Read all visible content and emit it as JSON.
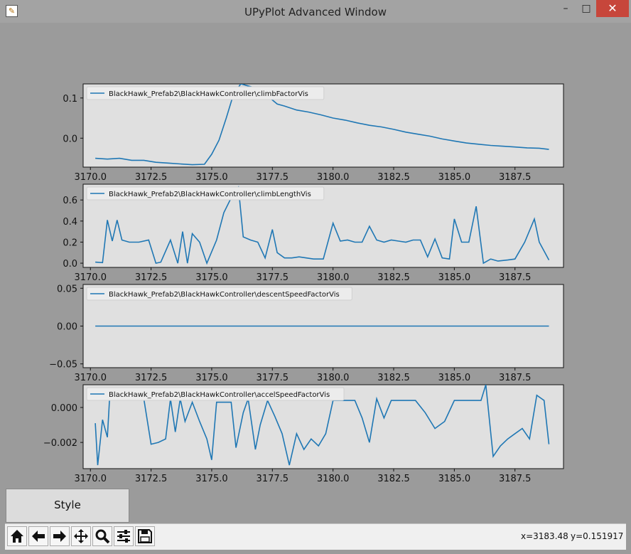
{
  "window": {
    "title": "UPyPlot Advanced Window",
    "minimize": "–",
    "maximize": "□",
    "close": "✕"
  },
  "style_button": {
    "label": "Style"
  },
  "toolbar": {
    "buttons": [
      "home-icon",
      "back-icon",
      "forward-icon",
      "pan-icon",
      "zoom-icon",
      "configure-subplots-icon",
      "save-icon"
    ],
    "coord_x": "x=3183.48",
    "coord_y": "y=0.151917"
  },
  "colors": {
    "series": "#1f77b4",
    "axes_bg": "#e0e0e0",
    "figure_bg": "#9b9b9b"
  },
  "chart_data": [
    {
      "type": "line",
      "legend": "BlackHawk_Prefab2\\BlackHawkController\\climbFactorVis",
      "legend_position": "top-left",
      "xlim": [
        3169.7,
        3189.5
      ],
      "ylim": [
        -0.072,
        0.135
      ],
      "xticks": [
        3170.0,
        3172.5,
        3175.0,
        3177.5,
        3180.0,
        3182.5,
        3185.0,
        3187.5
      ],
      "xticklabels": [
        "3170.0",
        "3172.5",
        "3175.0",
        "3177.5",
        "3180.0",
        "3182.5",
        "3185.0",
        "3187.5"
      ],
      "yticks": [
        0.1,
        0.0
      ],
      "yticklabels": [
        "0.1",
        "0.0"
      ],
      "x": [
        3170.2,
        3170.7,
        3171.2,
        3171.7,
        3172.2,
        3172.7,
        3173.2,
        3173.7,
        3174.2,
        3174.7,
        3175.0,
        3175.3,
        3175.6,
        3175.9,
        3176.2,
        3176.5,
        3176.8,
        3177.1,
        3177.4,
        3177.7,
        3178.0,
        3178.5,
        3179.0,
        3179.5,
        3180.0,
        3180.5,
        3181.0,
        3181.5,
        3182.0,
        3182.5,
        3183.0,
        3183.5,
        3184.0,
        3184.5,
        3185.0,
        3185.5,
        3186.0,
        3186.5,
        3187.0,
        3187.5,
        3188.0,
        3188.5,
        3188.9
      ],
      "y": [
        -0.05,
        -0.052,
        -0.05,
        -0.055,
        -0.055,
        -0.06,
        -0.062,
        -0.064,
        -0.066,
        -0.065,
        -0.04,
        -0.005,
        0.05,
        0.11,
        0.135,
        0.13,
        0.125,
        0.12,
        0.1,
        0.085,
        0.08,
        0.07,
        0.065,
        0.058,
        0.05,
        0.045,
        0.038,
        0.032,
        0.028,
        0.022,
        0.015,
        0.01,
        0.005,
        -0.002,
        -0.007,
        -0.012,
        -0.015,
        -0.018,
        -0.02,
        -0.022,
        -0.024,
        -0.025,
        -0.028
      ]
    },
    {
      "type": "line",
      "legend": "BlackHawk_Prefab2\\BlackHawkController\\climbLengthVis",
      "legend_position": "top-left",
      "xlim": [
        3169.7,
        3189.5
      ],
      "ylim": [
        -0.04,
        0.75
      ],
      "xticks": [
        3170.0,
        3172.5,
        3175.0,
        3177.5,
        3180.0,
        3182.5,
        3185.0,
        3187.5
      ],
      "xticklabels": [
        "3170.0",
        "3172.5",
        "3175.0",
        "3177.5",
        "3180.0",
        "3182.5",
        "3185.0",
        "3187.5"
      ],
      "yticks": [
        0.6,
        0.4,
        0.2,
        0.0
      ],
      "yticklabels": [
        "0.6",
        "0.4",
        "0.2",
        "0.0"
      ],
      "x": [
        3170.2,
        3170.5,
        3170.7,
        3170.9,
        3171.1,
        3171.3,
        3171.6,
        3172.0,
        3172.4,
        3172.7,
        3172.9,
        3173.3,
        3173.6,
        3173.8,
        3174.0,
        3174.2,
        3174.5,
        3174.8,
        3175.2,
        3175.5,
        3175.8,
        3176.1,
        3176.3,
        3176.6,
        3176.9,
        3177.2,
        3177.5,
        3177.7,
        3178.0,
        3178.3,
        3178.6,
        3178.9,
        3179.2,
        3179.6,
        3180.0,
        3180.3,
        3180.6,
        3180.9,
        3181.2,
        3181.5,
        3181.8,
        3182.1,
        3182.4,
        3182.7,
        3183.0,
        3183.3,
        3183.6,
        3183.9,
        3184.2,
        3184.5,
        3184.8,
        3185.0,
        3185.3,
        3185.6,
        3185.9,
        3186.2,
        3186.5,
        3186.8,
        3187.2,
        3187.5,
        3187.9,
        3188.3,
        3188.5,
        3188.9
      ],
      "y": [
        0.01,
        0.005,
        0.41,
        0.21,
        0.41,
        0.22,
        0.2,
        0.2,
        0.22,
        0.0,
        0.01,
        0.22,
        0.0,
        0.3,
        0.0,
        0.28,
        0.2,
        0.0,
        0.22,
        0.48,
        0.62,
        0.72,
        0.25,
        0.22,
        0.2,
        0.05,
        0.32,
        0.1,
        0.05,
        0.05,
        0.06,
        0.05,
        0.04,
        0.04,
        0.38,
        0.21,
        0.22,
        0.2,
        0.2,
        0.35,
        0.22,
        0.2,
        0.22,
        0.21,
        0.2,
        0.22,
        0.22,
        0.06,
        0.23,
        0.05,
        0.04,
        0.42,
        0.2,
        0.2,
        0.54,
        0.0,
        0.04,
        0.02,
        0.03,
        0.04,
        0.2,
        0.42,
        0.2,
        0.03
      ]
    },
    {
      "type": "line",
      "legend": "BlackHawk_Prefab2\\BlackHawkController\\descentSpeedFactorVis",
      "legend_position": "top-left",
      "xlim": [
        3169.7,
        3189.5
      ],
      "ylim": [
        -0.055,
        0.055
      ],
      "xticks": [
        3170.0,
        3172.5,
        3175.0,
        3177.5,
        3180.0,
        3182.5,
        3185.0,
        3187.5
      ],
      "xticklabels": [
        "3170.0",
        "3172.5",
        "3175.0",
        "3177.5",
        "3180.0",
        "3182.5",
        "3185.0",
        "3187.5"
      ],
      "yticks": [
        0.05,
        0.0,
        -0.05
      ],
      "yticklabels": [
        "0.05",
        "0.00",
        "−0.05"
      ],
      "x": [
        3170.2,
        3188.9
      ],
      "y": [
        0.0,
        0.0
      ]
    },
    {
      "type": "line",
      "legend": "BlackHawk_Prefab2\\BlackHawkController\\accelSpeedFactorVis",
      "legend_position": "top-left",
      "xlim": [
        3169.7,
        3189.5
      ],
      "ylim": [
        -0.0035,
        0.0013
      ],
      "xticks": [
        3170.0,
        3172.5,
        3175.0,
        3177.5,
        3180.0,
        3182.5,
        3185.0,
        3187.5
      ],
      "xticklabels": [
        "3170.0",
        "3172.5",
        "3175.0",
        "3177.5",
        "3180.0",
        "3182.5",
        "3185.0",
        "3187.5"
      ],
      "yticks": [
        0.0,
        -0.002
      ],
      "yticklabels": [
        "0.000",
        "−0.002"
      ],
      "x": [
        3170.2,
        3170.3,
        3170.5,
        3170.7,
        3170.8,
        3171.0,
        3171.3,
        3171.7,
        3172.2,
        3172.5,
        3172.8,
        3173.1,
        3173.3,
        3173.5,
        3173.7,
        3173.9,
        3174.2,
        3174.5,
        3174.8,
        3175.0,
        3175.2,
        3175.5,
        3175.8,
        3176.0,
        3176.3,
        3176.5,
        3176.8,
        3177.0,
        3177.3,
        3177.6,
        3177.9,
        3178.2,
        3178.5,
        3178.8,
        3179.1,
        3179.4,
        3179.7,
        3180.0,
        3180.3,
        3180.6,
        3180.9,
        3181.2,
        3181.5,
        3181.8,
        3182.1,
        3182.4,
        3182.7,
        3183.0,
        3183.4,
        3183.8,
        3184.2,
        3184.6,
        3185.0,
        3185.3,
        3185.6,
        3185.9,
        3186.1,
        3186.3,
        3186.6,
        3186.9,
        3187.2,
        3187.5,
        3187.8,
        3188.1,
        3188.4,
        3188.7,
        3188.9
      ],
      "y": [
        -0.0009,
        -0.0033,
        -0.0007,
        -0.0017,
        0.0008,
        0.0005,
        0.0005,
        0.0005,
        0.0005,
        -0.0021,
        -0.002,
        -0.0018,
        0.0005,
        -0.0014,
        0.0005,
        -0.0008,
        0.0003,
        -0.0008,
        -0.0018,
        -0.003,
        0.0003,
        0.0003,
        0.0003,
        -0.0023,
        -0.0003,
        0.0005,
        -0.0024,
        -0.001,
        0.0004,
        -0.0005,
        -0.0015,
        -0.0033,
        -0.0015,
        -0.0024,
        -0.0018,
        -0.0022,
        -0.0015,
        0.0004,
        0.0004,
        0.0004,
        0.0004,
        -0.0006,
        -0.002,
        0.0005,
        -0.0006,
        0.0004,
        0.0004,
        0.0004,
        0.0004,
        -0.0003,
        -0.0012,
        -0.0008,
        0.0004,
        0.0004,
        0.0004,
        0.0004,
        0.0004,
        0.0013,
        -0.0028,
        -0.0022,
        -0.0018,
        -0.0015,
        -0.0012,
        -0.0018,
        0.0007,
        0.0004,
        -0.0021
      ]
    }
  ]
}
